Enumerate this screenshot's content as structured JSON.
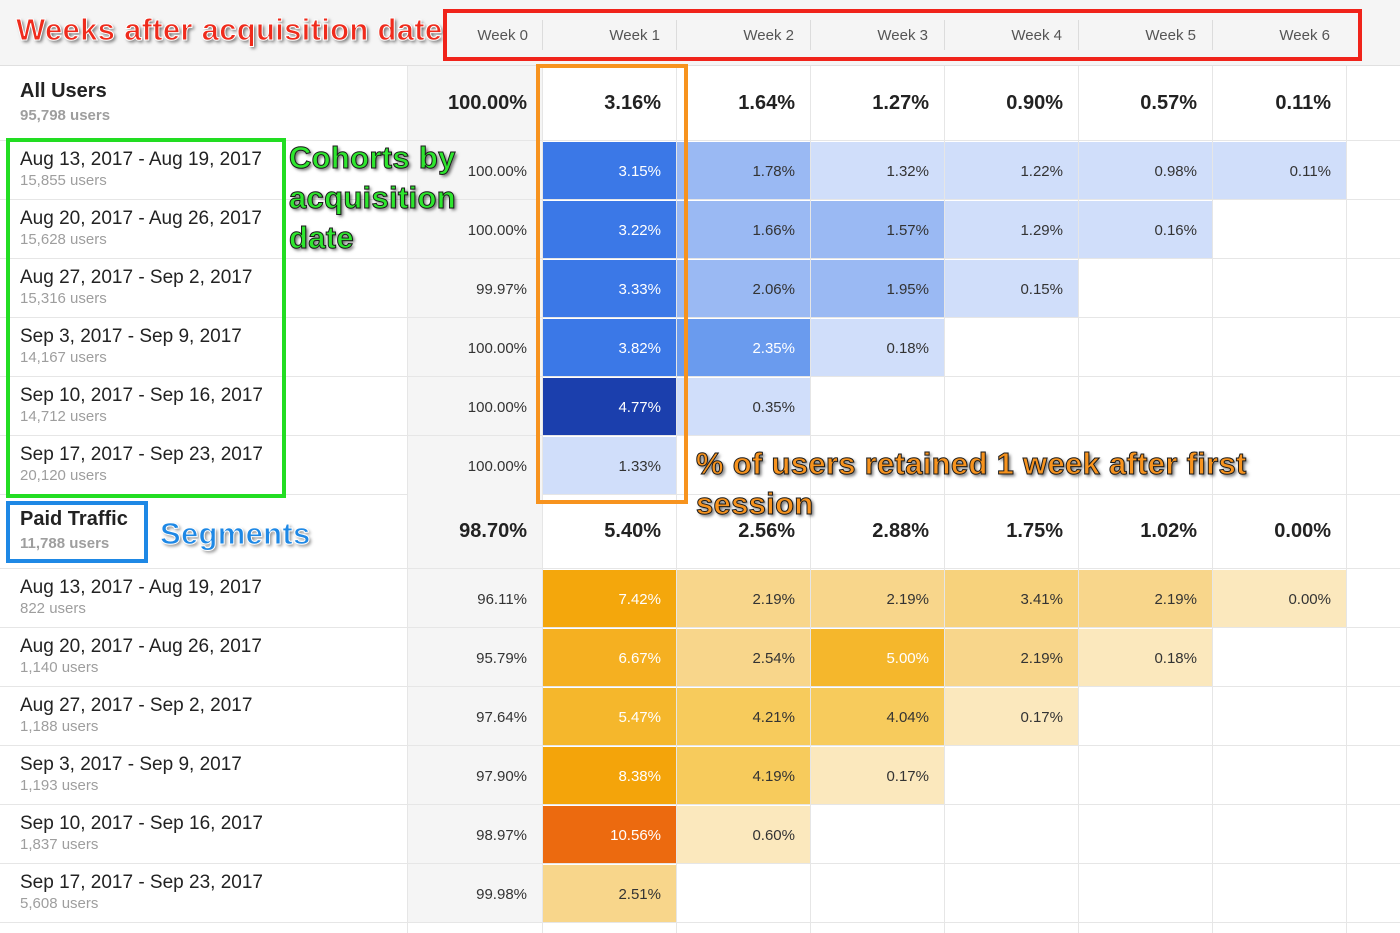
{
  "annotations": {
    "weeks": "Weeks after acquisition date",
    "cohorts": [
      "Cohorts by",
      "acquisition",
      "date"
    ],
    "retained": [
      "% of users retained 1 week after first",
      "session"
    ],
    "segments": "Segments"
  },
  "header": {
    "weeks": [
      "Week 0",
      "Week 1",
      "Week 2",
      "Week 3",
      "Week 4",
      "Week 5",
      "Week 6"
    ]
  },
  "segments": [
    {
      "title": "All Users",
      "subtitle": "95,798 users",
      "totals": [
        "100.00%",
        "3.16%",
        "1.64%",
        "1.27%",
        "0.90%",
        "0.57%",
        "0.11%"
      ],
      "rows": [
        {
          "label": "Aug 13, 2017 - Aug 19, 2017",
          "users": "15,855 users",
          "values": [
            "100.00%",
            "3.15%",
            "1.78%",
            "1.32%",
            "1.22%",
            "0.98%",
            "0.11%"
          ],
          "colors": [
            "#ffffff",
            "#3b78e7",
            "#9ab9f3",
            "#d0defa",
            "#d0defa",
            "#d0defa",
            "#d0defa"
          ]
        },
        {
          "label": "Aug 20, 2017 - Aug 26, 2017",
          "users": "15,628 users",
          "values": [
            "100.00%",
            "3.22%",
            "1.66%",
            "1.57%",
            "1.29%",
            "0.16%"
          ],
          "colors": [
            "#ffffff",
            "#3b78e7",
            "#9ab9f3",
            "#9ab9f3",
            "#d0defa",
            "#d0defa"
          ]
        },
        {
          "label": "Aug 27, 2017 - Sep 2, 2017",
          "users": "15,316 users",
          "values": [
            "99.97%",
            "3.33%",
            "2.06%",
            "1.95%",
            "0.15%"
          ],
          "colors": [
            "#ffffff",
            "#3b78e7",
            "#9ab9f3",
            "#9ab9f3",
            "#d0defa"
          ]
        },
        {
          "label": "Sep 3, 2017 - Sep 9, 2017",
          "users": "14,167 users",
          "values": [
            "100.00%",
            "3.82%",
            "2.35%",
            "0.18%"
          ],
          "colors": [
            "#ffffff",
            "#3b78e7",
            "#6a9bee",
            "#d0defa"
          ]
        },
        {
          "label": "Sep 10, 2017 - Sep 16, 2017",
          "users": "14,712 users",
          "values": [
            "100.00%",
            "4.77%",
            "0.35%"
          ],
          "colors": [
            "#ffffff",
            "#1b3fad",
            "#d0defa"
          ]
        },
        {
          "label": "Sep 17, 2017 - Sep 23, 2017",
          "users": "20,120 users",
          "values": [
            "100.00%",
            "1.33%"
          ],
          "colors": [
            "#ffffff",
            "#d0defa"
          ]
        }
      ]
    },
    {
      "title": "Paid Traffic",
      "subtitle": "11,788 users",
      "totals": [
        "98.70%",
        "5.40%",
        "2.56%",
        "2.88%",
        "1.75%",
        "1.02%",
        "0.00%"
      ],
      "rows": [
        {
          "label": "Aug 13, 2017 - Aug 19, 2017",
          "users": "822 users",
          "values": [
            "96.11%",
            "7.42%",
            "2.19%",
            "2.19%",
            "3.41%",
            "2.19%",
            "0.00%"
          ],
          "colors": [
            "#ffffff",
            "#f4a70c",
            "#f8d68b",
            "#f8d68b",
            "#f7d27c",
            "#f8d68b",
            "#fbe8bd"
          ]
        },
        {
          "label": "Aug 20, 2017 - Aug 26, 2017",
          "users": "1,140 users",
          "values": [
            "95.79%",
            "6.67%",
            "2.54%",
            "5.00%",
            "2.19%",
            "0.18%"
          ],
          "colors": [
            "#ffffff",
            "#f5b021",
            "#f8d68b",
            "#f5b72c",
            "#f8d68b",
            "#fbe8bd"
          ]
        },
        {
          "label": "Aug 27, 2017 - Sep 2, 2017",
          "users": "1,188 users",
          "values": [
            "97.64%",
            "5.47%",
            "4.21%",
            "4.04%",
            "0.17%"
          ],
          "colors": [
            "#ffffff",
            "#f5b72c",
            "#f7cb5c",
            "#f7cb5c",
            "#fbe8bd"
          ]
        },
        {
          "label": "Sep 3, 2017 - Sep 9, 2017",
          "users": "1,193 users",
          "values": [
            "97.90%",
            "8.38%",
            "4.19%",
            "0.17%"
          ],
          "colors": [
            "#ffffff",
            "#f4a40a",
            "#f7cb5c",
            "#fbe8bd"
          ]
        },
        {
          "label": "Sep 10, 2017 - Sep 16, 2017",
          "users": "1,837 users",
          "values": [
            "98.97%",
            "10.56%",
            "0.60%"
          ],
          "colors": [
            "#ffffff",
            "#ec6a0f",
            "#fbe8bd"
          ]
        },
        {
          "label": "Sep 17, 2017 - Sep 23, 2017",
          "users": "5,608 users",
          "values": [
            "99.98%",
            "2.51%"
          ],
          "colors": [
            "#ffffff",
            "#f8d68b"
          ]
        }
      ]
    }
  ]
}
